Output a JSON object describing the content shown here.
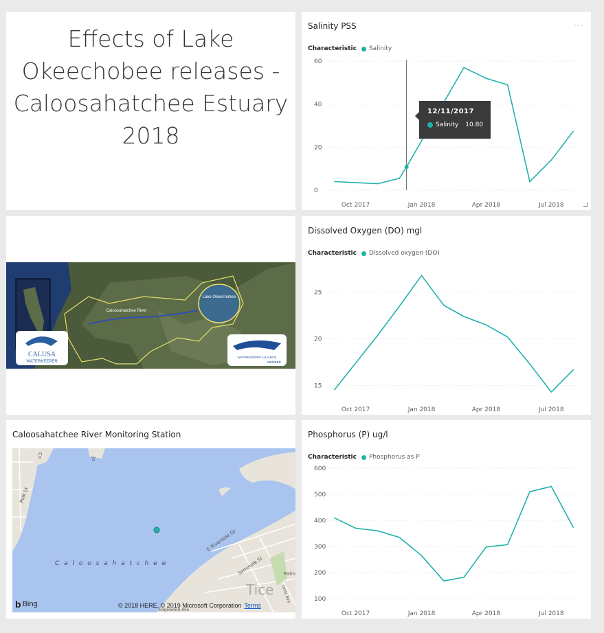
{
  "title_tile": {
    "text": "Effects of Lake\nOkeechobee releases -\nCaloosahatchee Estuary\n2018"
  },
  "salinity": {
    "title": "Salinity PSS",
    "more": "···",
    "legend_label": "Characteristic",
    "series_label": "Salinity",
    "color": "#20b2aa",
    "tooltip": {
      "date": "12/11/2017",
      "series": "Salinity",
      "value": "10.80"
    }
  },
  "map_tile": {
    "labels": {
      "lake": "Lake Okeechobee",
      "river": "Caloosahatchee River",
      "calusa": "CALUSA",
      "waterkeeper": "WATERKEEPER",
      "alliance": "WATERKEEPER ALLIANCE",
      "member": "MEMBER"
    }
  },
  "do": {
    "title": "Dissolved Oxygen (DO) mgl",
    "legend_label": "Characteristic",
    "series_label": "Dissolved oxygen (DO)",
    "color": "#20b2aa"
  },
  "station": {
    "title": "Caloosahatchee River Monitoring Station",
    "river_label": "C a l o o s a h a t c h e e",
    "bing": "Bing",
    "copyright": "© 2018 HERE, © 2019 Microsoft Corporation",
    "terms": "Terms",
    "streets": [
      "E Riverside Dr",
      "Seminole St",
      "Tice",
      "Palm",
      "Ortiz Ave",
      "Edgewood Ave",
      "Polk St",
      "Jo",
      "Co"
    ]
  },
  "phosphorus": {
    "title": "Phosphorus (P) ug/l",
    "legend_label": "Characteristic",
    "series_label": "Phosphorus as P",
    "color": "#20b2aa"
  },
  "chart_data": [
    {
      "type": "line",
      "title": "Salinity PSS",
      "x": [
        "2017-09-01",
        "2017-11-01",
        "2017-12-01",
        "2017-12-11",
        "2018-03-01",
        "2018-04-01",
        "2018-05-01",
        "2018-06-01",
        "2018-07-01",
        "2018-08-01"
      ],
      "xticks": [
        "Oct 2017",
        "Jan 2018",
        "Apr 2018",
        "Jul 2018"
      ],
      "ylim": [
        0,
        60
      ],
      "yticks": [
        0,
        20,
        40,
        60
      ],
      "series": [
        {
          "name": "Salinity",
          "values": [
            4,
            3,
            5.5,
            10.8,
            57,
            52,
            49,
            4,
            14,
            27.5
          ]
        }
      ]
    },
    {
      "type": "line",
      "title": "Dissolved Oxygen (DO) mgl",
      "x": [
        "2017-09-01",
        "2017-10-01",
        "2017-11-01",
        "2017-12-01",
        "2018-01-01",
        "2018-02-01",
        "2018-03-01",
        "2018-04-01",
        "2018-05-01",
        "2018-06-01",
        "2018-07-01",
        "2018-08-01"
      ],
      "xticks": [
        "Oct 2017",
        "Jan 2018",
        "Apr 2018",
        "Jul 2018"
      ],
      "ylim": [
        14,
        28
      ],
      "yticks": [
        15,
        20,
        25
      ],
      "series": [
        {
          "name": "Dissolved oxygen (DO)",
          "values": [
            14.5,
            17.4,
            20.4,
            23.5,
            26.8,
            23.6,
            22.4,
            21.5,
            20.2,
            17.3,
            14.3,
            16.7
          ]
        }
      ]
    },
    {
      "type": "line",
      "title": "Phosphorus (P) ug/l",
      "x": [
        "2017-09-01",
        "2017-10-01",
        "2017-11-01",
        "2017-12-01",
        "2018-01-01",
        "2018-02-01",
        "2018-03-01",
        "2018-04-01",
        "2018-05-01",
        "2018-06-01",
        "2018-07-01",
        "2018-08-01"
      ],
      "xticks": [
        "Oct 2017",
        "Jan 2018",
        "Apr 2018",
        "Jul 2018"
      ],
      "ylim": [
        100,
        600
      ],
      "yticks": [
        100,
        200,
        300,
        400,
        500,
        600
      ],
      "series": [
        {
          "name": "Phosphorus as P",
          "values": [
            410,
            370,
            360,
            335,
            265,
            168,
            182,
            298,
            307,
            510,
            530,
            372
          ]
        }
      ]
    }
  ]
}
